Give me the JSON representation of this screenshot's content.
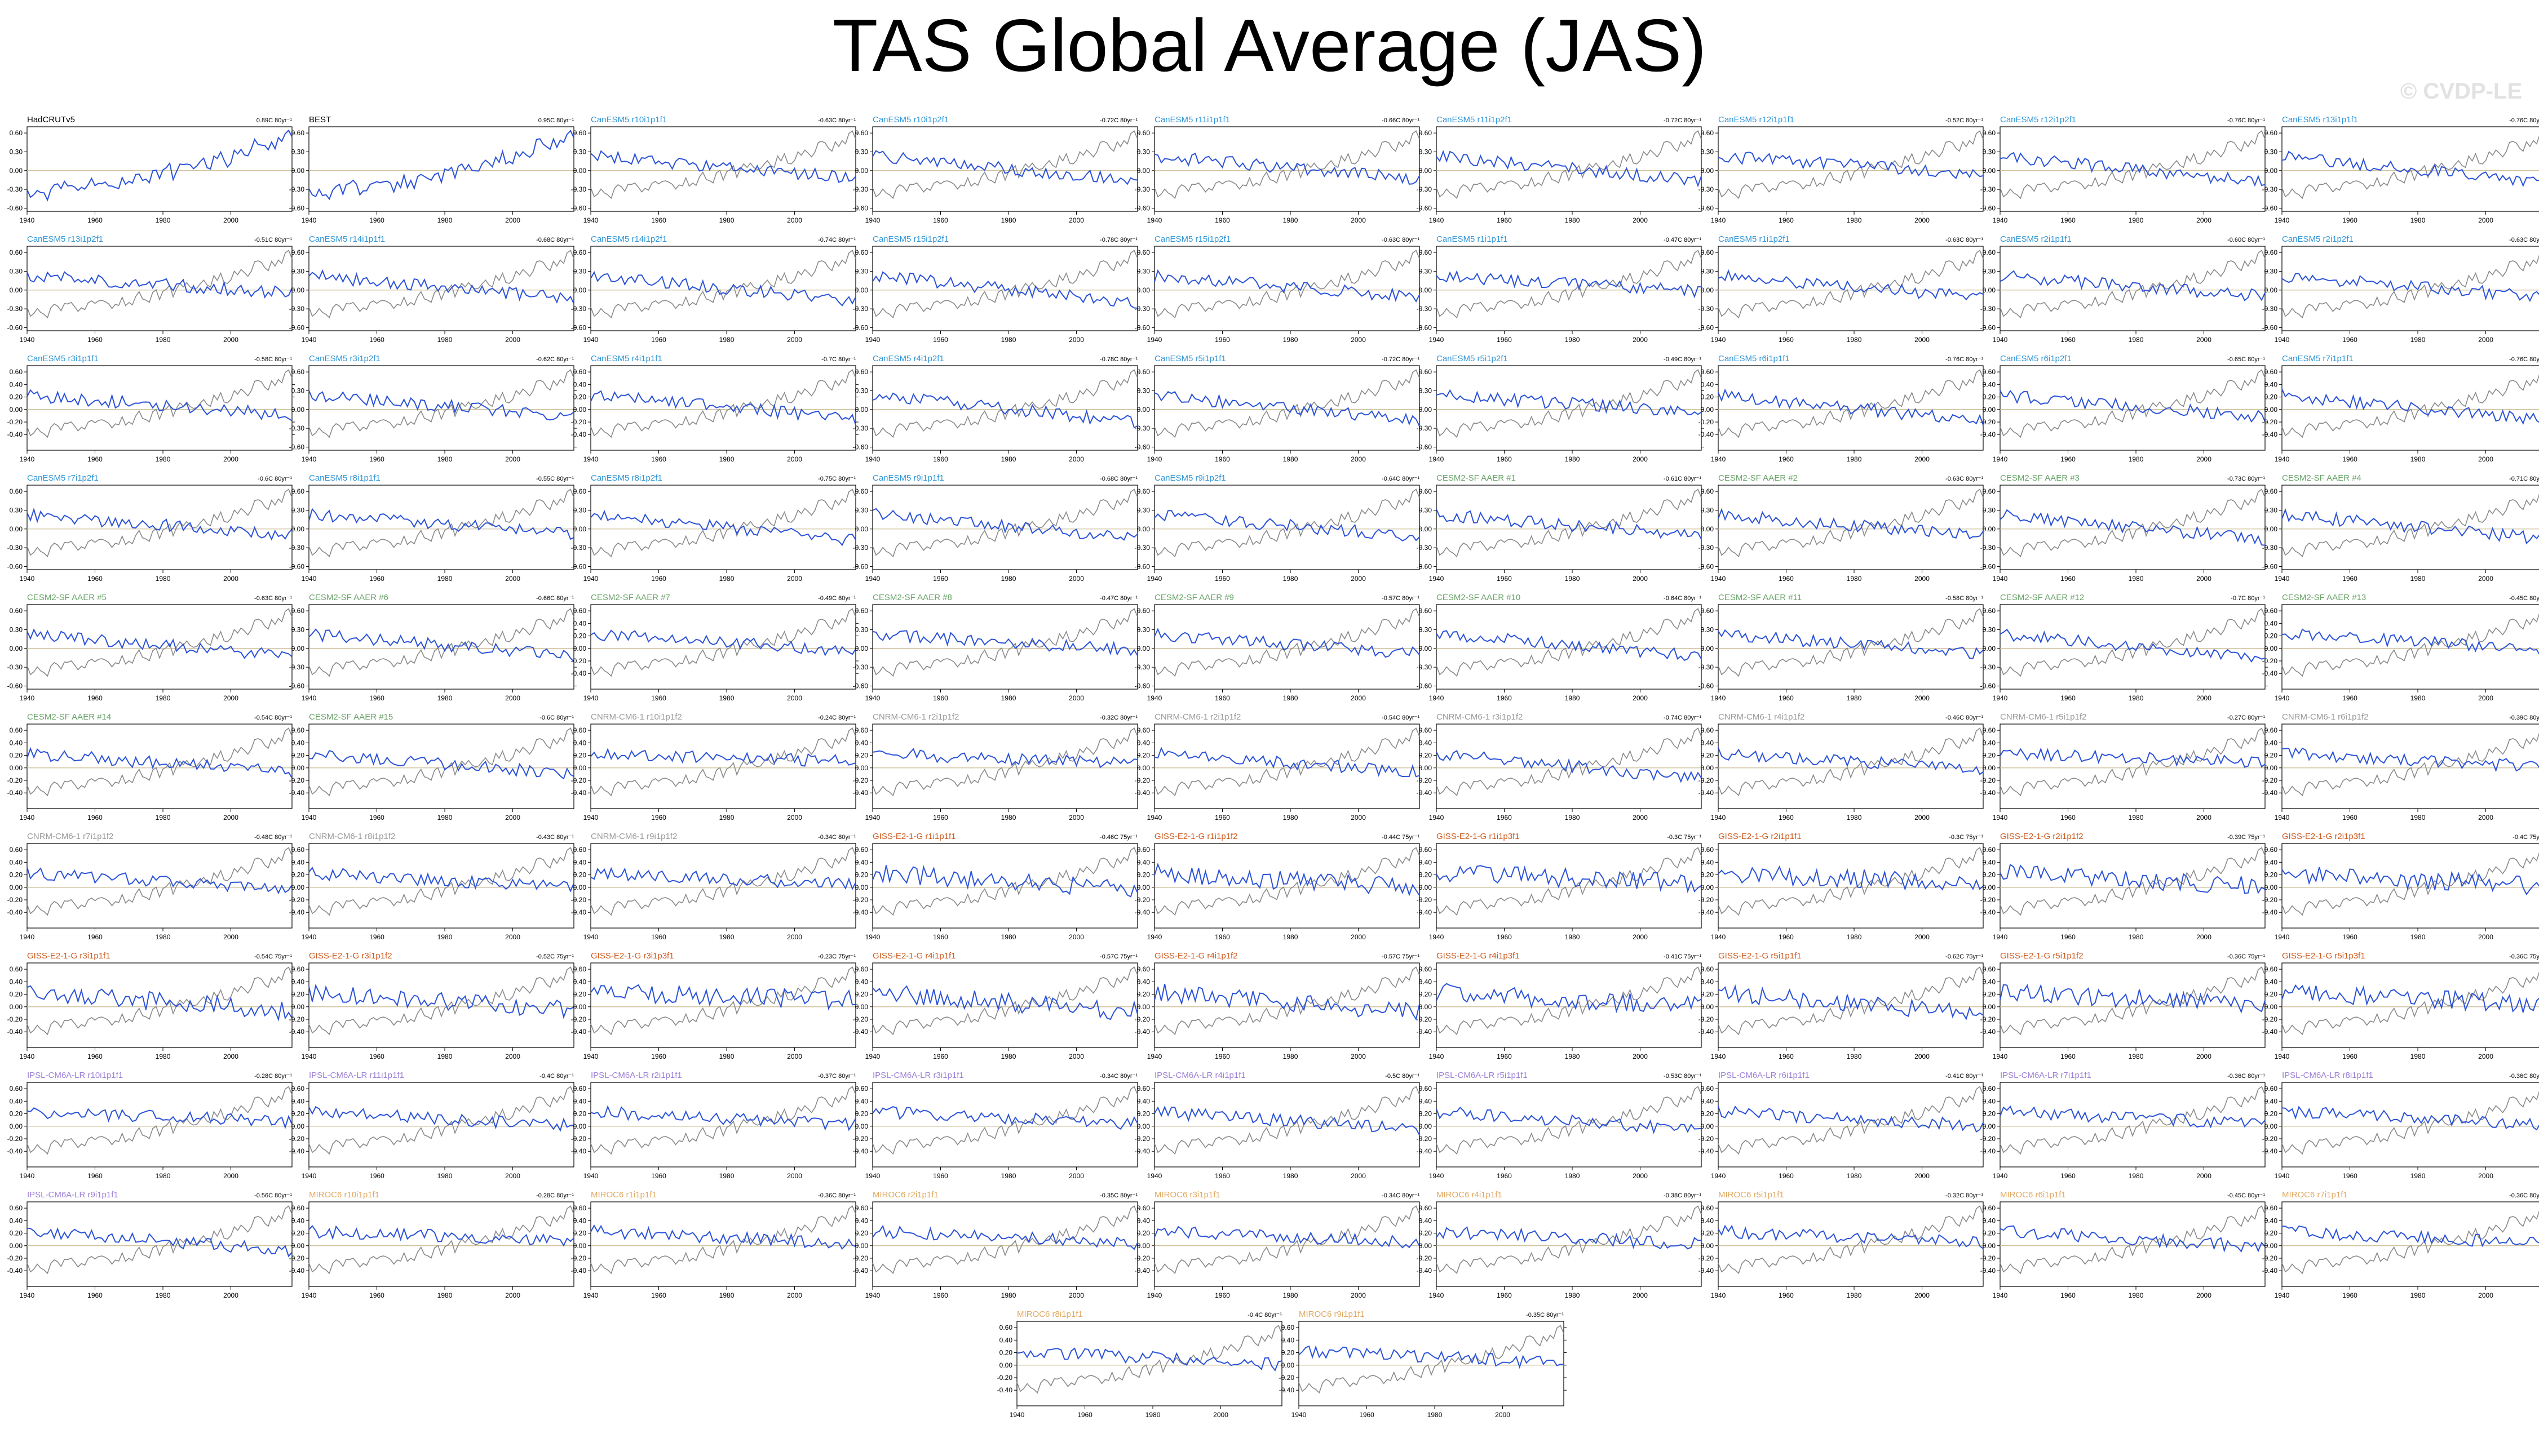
{
  "title": "TAS Global Average (JAS)",
  "watermark": "© CVDP-LE",
  "colors": {
    "model_line": "#2b52d9",
    "observed_line": "#8a8a8a",
    "zero_line": "#c9b98f",
    "axis": "#000000",
    "label_black": "#000000",
    "label_CanESM5": "#2f95d6",
    "label_CESM2": "#6aa36a",
    "label_CNRM": "#9a9a9a",
    "label_GISS": "#cc5a1e",
    "label_IPSL": "#9b7fd6",
    "label_MIROC": "#e0a860"
  },
  "chart_data": {
    "type": "line",
    "x_range": [
      1940,
      2018
    ],
    "x_ticks": [
      1940,
      1960,
      1980,
      2000
    ],
    "y_ticks_a": [
      "0.60",
      "0.30",
      "0.00",
      "-0.30",
      "-0.60"
    ],
    "y_ticks_b": [
      "0.60",
      "0.40",
      "0.20",
      "0.00",
      "-0.20",
      "-0.40"
    ],
    "panels": [
      {
        "name": "HadCRUTv5",
        "trend": "0.89C 80yr⁻¹",
        "group": "black",
        "ticks": "a"
      },
      {
        "name": "BEST",
        "trend": "0.95C 80yr⁻¹",
        "group": "black",
        "ticks": "a"
      },
      {
        "name": "CanESM5 r10i1p1f1",
        "trend": "-0.63C 80yr⁻¹",
        "group": "CanESM5",
        "ticks": "a"
      },
      {
        "name": "CanESM5 r10i1p2f1",
        "trend": "-0.72C 80yr⁻¹",
        "group": "CanESM5",
        "ticks": "a"
      },
      {
        "name": "CanESM5 r11i1p1f1",
        "trend": "-0.66C 80yr⁻¹",
        "group": "CanESM5",
        "ticks": "a"
      },
      {
        "name": "CanESM5 r11i1p2f1",
        "trend": "-0.72C 80yr⁻¹",
        "group": "CanESM5",
        "ticks": "a"
      },
      {
        "name": "CanESM5 r12i1p1f1",
        "trend": "-0.52C 80yr⁻¹",
        "group": "CanESM5",
        "ticks": "a"
      },
      {
        "name": "CanESM5 r12i1p2f1",
        "trend": "-0.76C 80yr⁻¹",
        "group": "CanESM5",
        "ticks": "a"
      },
      {
        "name": "CanESM5 r13i1p1f1",
        "trend": "-0.76C 80yr⁻¹",
        "group": "CanESM5",
        "ticks": "a"
      },
      {
        "name": "CanESM5 r13i1p2f1",
        "trend": "-0.51C 80yr⁻¹",
        "group": "CanESM5",
        "ticks": "a"
      },
      {
        "name": "CanESM5 r14i1p1f1",
        "trend": "-0.68C 80yr⁻¹",
        "group": "CanESM5",
        "ticks": "a"
      },
      {
        "name": "CanESM5 r14i1p2f1",
        "trend": "-0.74C 80yr⁻¹",
        "group": "CanESM5",
        "ticks": "a"
      },
      {
        "name": "CanESM5 r15i1p2f1",
        "trend": "-0.78C 80yr⁻¹",
        "group": "CanESM5",
        "ticks": "a"
      },
      {
        "name": "CanESM5 r15i1p2f1",
        "trend": "-0.63C 80yr⁻¹",
        "group": "CanESM5",
        "ticks": "a"
      },
      {
        "name": "CanESM5 r1i1p1f1",
        "trend": "-0.47C 80yr⁻¹",
        "group": "CanESM5",
        "ticks": "a"
      },
      {
        "name": "CanESM5 r1i1p2f1",
        "trend": "-0.63C 80yr⁻¹",
        "group": "CanESM5",
        "ticks": "a"
      },
      {
        "name": "CanESM5 r2i1p1f1",
        "trend": "-0.60C 80yr⁻¹",
        "group": "CanESM5",
        "ticks": "a"
      },
      {
        "name": "CanESM5 r2i1p2f1",
        "trend": "-0.63C 80yr⁻¹",
        "group": "CanESM5",
        "ticks": "a"
      },
      {
        "name": "CanESM5 r3i1p1f1",
        "trend": "-0.58C 80yr⁻¹",
        "group": "CanESM5",
        "ticks": "b"
      },
      {
        "name": "CanESM5 r3i1p2f1",
        "trend": "-0.62C 80yr⁻¹",
        "group": "CanESM5",
        "ticks": "a"
      },
      {
        "name": "CanESM5 r4i1p1f1",
        "trend": "-0.7C 80yr⁻¹",
        "group": "CanESM5",
        "ticks": "b"
      },
      {
        "name": "CanESM5 r4i1p2f1",
        "trend": "-0.78C 80yr⁻¹",
        "group": "CanESM5",
        "ticks": "a"
      },
      {
        "name": "CanESM5 r5i1p1f1",
        "trend": "-0.72C 80yr⁻¹",
        "group": "CanESM5",
        "ticks": "a"
      },
      {
        "name": "CanESM5 r5i1p2f1",
        "trend": "-0.49C 80yr⁻¹",
        "group": "CanESM5",
        "ticks": "a"
      },
      {
        "name": "CanESM5 r6i1p1f1",
        "trend": "-0.76C 80yr⁻¹",
        "group": "CanESM5",
        "ticks": "b"
      },
      {
        "name": "CanESM5 r6i1p2f1",
        "trend": "-0.65C 80yr⁻¹",
        "group": "CanESM5",
        "ticks": "b"
      },
      {
        "name": "CanESM5 r7i1p1f1",
        "trend": "-0.76C 80yr⁻¹",
        "group": "CanESM5",
        "ticks": "b"
      },
      {
        "name": "CanESM5 r7i1p2f1",
        "trend": "-0.6C 80yr⁻¹",
        "group": "CanESM5",
        "ticks": "a"
      },
      {
        "name": "CanESM5 r8i1p1f1",
        "trend": "-0.55C 80yr⁻¹",
        "group": "CanESM5",
        "ticks": "a"
      },
      {
        "name": "CanESM5 r8i1p2f1",
        "trend": "-0.75C 80yr⁻¹",
        "group": "CanESM5",
        "ticks": "a"
      },
      {
        "name": "CanESM5 r9i1p1f1",
        "trend": "-0.68C 80yr⁻¹",
        "group": "CanESM5",
        "ticks": "a"
      },
      {
        "name": "CanESM5 r9i1p2f1",
        "trend": "-0.64C 80yr⁻¹",
        "group": "CanESM5",
        "ticks": "a"
      },
      {
        "name": "CESM2-SF AAER #1",
        "trend": "-0.61C 80yr⁻¹",
        "group": "CESM2",
        "ticks": "a"
      },
      {
        "name": "CESM2-SF AAER #2",
        "trend": "-0.63C 80yr⁻¹",
        "group": "CESM2",
        "ticks": "a"
      },
      {
        "name": "CESM2-SF AAER #3",
        "trend": "-0.73C 80yr⁻¹",
        "group": "CESM2",
        "ticks": "a"
      },
      {
        "name": "CESM2-SF AAER #4",
        "trend": "-0.71C 80yr⁻¹",
        "group": "CESM2",
        "ticks": "a"
      },
      {
        "name": "CESM2-SF AAER #5",
        "trend": "-0.63C 80yr⁻¹",
        "group": "CESM2",
        "ticks": "a"
      },
      {
        "name": "CESM2-SF AAER #6",
        "trend": "-0.66C 80yr⁻¹",
        "group": "CESM2",
        "ticks": "a"
      },
      {
        "name": "CESM2-SF AAER #7",
        "trend": "-0.49C 80yr⁻¹",
        "group": "CESM2",
        "ticks": "b"
      },
      {
        "name": "CESM2-SF AAER #8",
        "trend": "-0.47C 80yr⁻¹",
        "group": "CESM2",
        "ticks": "a"
      },
      {
        "name": "CESM2-SF AAER #9",
        "trend": "-0.57C 80yr⁻¹",
        "group": "CESM2",
        "ticks": "a"
      },
      {
        "name": "CESM2-SF AAER #10",
        "trend": "-0.64C 80yr⁻¹",
        "group": "CESM2",
        "ticks": "a"
      },
      {
        "name": "CESM2-SF AAER #11",
        "trend": "-0.58C 80yr⁻¹",
        "group": "CESM2",
        "ticks": "a"
      },
      {
        "name": "CESM2-SF AAER #12",
        "trend": "-0.7C 80yr⁻¹",
        "group": "CESM2",
        "ticks": "a"
      },
      {
        "name": "CESM2-SF AAER #13",
        "trend": "-0.45C 80yr⁻¹",
        "group": "CESM2",
        "ticks": "b"
      },
      {
        "name": "CESM2-SF AAER #14",
        "trend": "-0.54C 80yr⁻¹",
        "group": "CESM2",
        "ticks": "b"
      },
      {
        "name": "CESM2-SF AAER #15",
        "trend": "-0.6C 80yr⁻¹",
        "group": "CESM2",
        "ticks": "b"
      },
      {
        "name": "CNRM-CM6-1 r10i1p1f2",
        "trend": "-0.24C 80yr⁻¹",
        "group": "CNRM",
        "ticks": "b"
      },
      {
        "name": "CNRM-CM6-1 r2i1p1f2",
        "trend": "-0.32C 80yr⁻¹",
        "group": "CNRM",
        "ticks": "b"
      },
      {
        "name": "CNRM-CM6-1 r2i1p1f2",
        "trend": "-0.54C 80yr⁻¹",
        "group": "CNRM",
        "ticks": "b"
      },
      {
        "name": "CNRM-CM6-1 r3i1p1f2",
        "trend": "-0.74C 80yr⁻¹",
        "group": "CNRM",
        "ticks": "b"
      },
      {
        "name": "CNRM-CM6-1 r4i1p1f2",
        "trend": "-0.46C 80yr⁻¹",
        "group": "CNRM",
        "ticks": "b"
      },
      {
        "name": "CNRM-CM6-1 r5i1p1f2",
        "trend": "-0.27C 80yr⁻¹",
        "group": "CNRM",
        "ticks": "b"
      },
      {
        "name": "CNRM-CM6-1 r6i1p1f2",
        "trend": "-0.39C 80yr⁻¹",
        "group": "CNRM",
        "ticks": "b"
      },
      {
        "name": "CNRM-CM6-1 r7i1p1f2",
        "trend": "-0.48C 80yr⁻¹",
        "group": "CNRM",
        "ticks": "b"
      },
      {
        "name": "CNRM-CM6-1 r8i1p1f2",
        "trend": "-0.43C 80yr⁻¹",
        "group": "CNRM",
        "ticks": "b"
      },
      {
        "name": "CNRM-CM6-1 r9i1p1f2",
        "trend": "-0.34C 80yr⁻¹",
        "group": "CNRM",
        "ticks": "b"
      },
      {
        "name": "GISS-E2-1-G r1i1p1f1",
        "trend": "-0.46C 75yr⁻¹",
        "group": "GISS",
        "ticks": "b"
      },
      {
        "name": "GISS-E2-1-G r1i1p1f2",
        "trend": "-0.44C 75yr⁻¹",
        "group": "GISS",
        "ticks": "b"
      },
      {
        "name": "GISS-E2-1-G r1i1p3f1",
        "trend": "-0.3C 75yr⁻¹",
        "group": "GISS",
        "ticks": "b"
      },
      {
        "name": "GISS-E2-1-G r2i1p1f1",
        "trend": "-0.3C 75yr⁻¹",
        "group": "GISS",
        "ticks": "b"
      },
      {
        "name": "GISS-E2-1-G r2i1p1f2",
        "trend": "-0.39C 75yr⁻¹",
        "group": "GISS",
        "ticks": "b"
      },
      {
        "name": "GISS-E2-1-G r2i1p3f1",
        "trend": "-0.4C 75yr⁻¹",
        "group": "GISS",
        "ticks": "b"
      },
      {
        "name": "GISS-E2-1-G r3i1p1f1",
        "trend": "-0.54C 75yr⁻¹",
        "group": "GISS",
        "ticks": "b"
      },
      {
        "name": "GISS-E2-1-G r3i1p1f2",
        "trend": "-0.52C 75yr⁻¹",
        "group": "GISS",
        "ticks": "b"
      },
      {
        "name": "GISS-E2-1-G r3i1p3f1",
        "trend": "-0.23C 75yr⁻¹",
        "group": "GISS",
        "ticks": "b"
      },
      {
        "name": "GISS-E2-1-G r4i1p1f1",
        "trend": "-0.57C 75yr⁻¹",
        "group": "GISS",
        "ticks": "b"
      },
      {
        "name": "GISS-E2-1-G r4i1p1f2",
        "trend": "-0.57C 75yr⁻¹",
        "group": "GISS",
        "ticks": "b"
      },
      {
        "name": "GISS-E2-1-G r4i1p3f1",
        "trend": "-0.41C 75yr⁻¹",
        "group": "GISS",
        "ticks": "b"
      },
      {
        "name": "GISS-E2-1-G r5i1p1f1",
        "trend": "-0.62C 75yr⁻¹",
        "group": "GISS",
        "ticks": "b"
      },
      {
        "name": "GISS-E2-1-G r5i1p1f2",
        "trend": "-0.36C 75yr⁻¹",
        "group": "GISS",
        "ticks": "b"
      },
      {
        "name": "GISS-E2-1-G r5i1p3f1",
        "trend": "-0.36C 75yr⁻¹",
        "group": "GISS",
        "ticks": "b"
      },
      {
        "name": "IPSL-CM6A-LR r10i1p1f1",
        "trend": "-0.28C 80yr⁻¹",
        "group": "IPSL",
        "ticks": "b"
      },
      {
        "name": "IPSL-CM6A-LR r11i1p1f1",
        "trend": "-0.4C 80yr⁻¹",
        "group": "IPSL",
        "ticks": "b"
      },
      {
        "name": "IPSL-CM6A-LR r2i1p1f1",
        "trend": "-0.37C 80yr⁻¹",
        "group": "IPSL",
        "ticks": "b"
      },
      {
        "name": "IPSL-CM6A-LR r3i1p1f1",
        "trend": "-0.34C 80yr⁻¹",
        "group": "IPSL",
        "ticks": "b"
      },
      {
        "name": "IPSL-CM6A-LR r4i1p1f1",
        "trend": "-0.5C 80yr⁻¹",
        "group": "IPSL",
        "ticks": "b"
      },
      {
        "name": "IPSL-CM6A-LR r5i1p1f1",
        "trend": "-0.53C 80yr⁻¹",
        "group": "IPSL",
        "ticks": "b"
      },
      {
        "name": "IPSL-CM6A-LR r6i1p1f1",
        "trend": "-0.41C 80yr⁻¹",
        "group": "IPSL",
        "ticks": "b"
      },
      {
        "name": "IPSL-CM6A-LR r7i1p1f1",
        "trend": "-0.36C 80yr⁻¹",
        "group": "IPSL",
        "ticks": "b"
      },
      {
        "name": "IPSL-CM6A-LR r8i1p1f1",
        "trend": "-0.36C 80yr⁻¹",
        "group": "IPSL",
        "ticks": "b"
      },
      {
        "name": "IPSL-CM6A-LR r9i1p1f1",
        "trend": "-0.56C 80yr⁻¹",
        "group": "IPSL",
        "ticks": "b"
      },
      {
        "name": "MIROC6 r10i1p1f1",
        "trend": "-0.28C 80yr⁻¹",
        "group": "MIROC",
        "ticks": "b"
      },
      {
        "name": "MIROC6 r1i1p1f1",
        "trend": "-0.36C 80yr⁻¹",
        "group": "MIROC",
        "ticks": "b"
      },
      {
        "name": "MIROC6 r2i1p1f1",
        "trend": "-0.35C 80yr⁻¹",
        "group": "MIROC",
        "ticks": "b"
      },
      {
        "name": "MIROC6 r3i1p1f1",
        "trend": "-0.34C 80yr⁻¹",
        "group": "MIROC",
        "ticks": "b"
      },
      {
        "name": "MIROC6 r4i1p1f1",
        "trend": "-0.38C 80yr⁻¹",
        "group": "MIROC",
        "ticks": "b"
      },
      {
        "name": "MIROC6 r5i1p1f1",
        "trend": "-0.32C 80yr⁻¹",
        "group": "MIROC",
        "ticks": "b"
      },
      {
        "name": "MIROC6 r6i1p1f1",
        "trend": "-0.45C 80yr⁻¹",
        "group": "MIROC",
        "ticks": "b"
      },
      {
        "name": "MIROC6 r7i1p1f1",
        "trend": "-0.36C 80yr⁻¹",
        "group": "MIROC",
        "ticks": "b"
      },
      {
        "name": "MIROC6 r8i1p1f1",
        "trend": "-0.4C 80yr⁻¹",
        "group": "MIROC",
        "ticks": "b"
      },
      {
        "name": "MIROC6 r9i1p1f1",
        "trend": "-0.35C 80yr⁻¹",
        "group": "MIROC",
        "ticks": "b"
      }
    ]
  }
}
